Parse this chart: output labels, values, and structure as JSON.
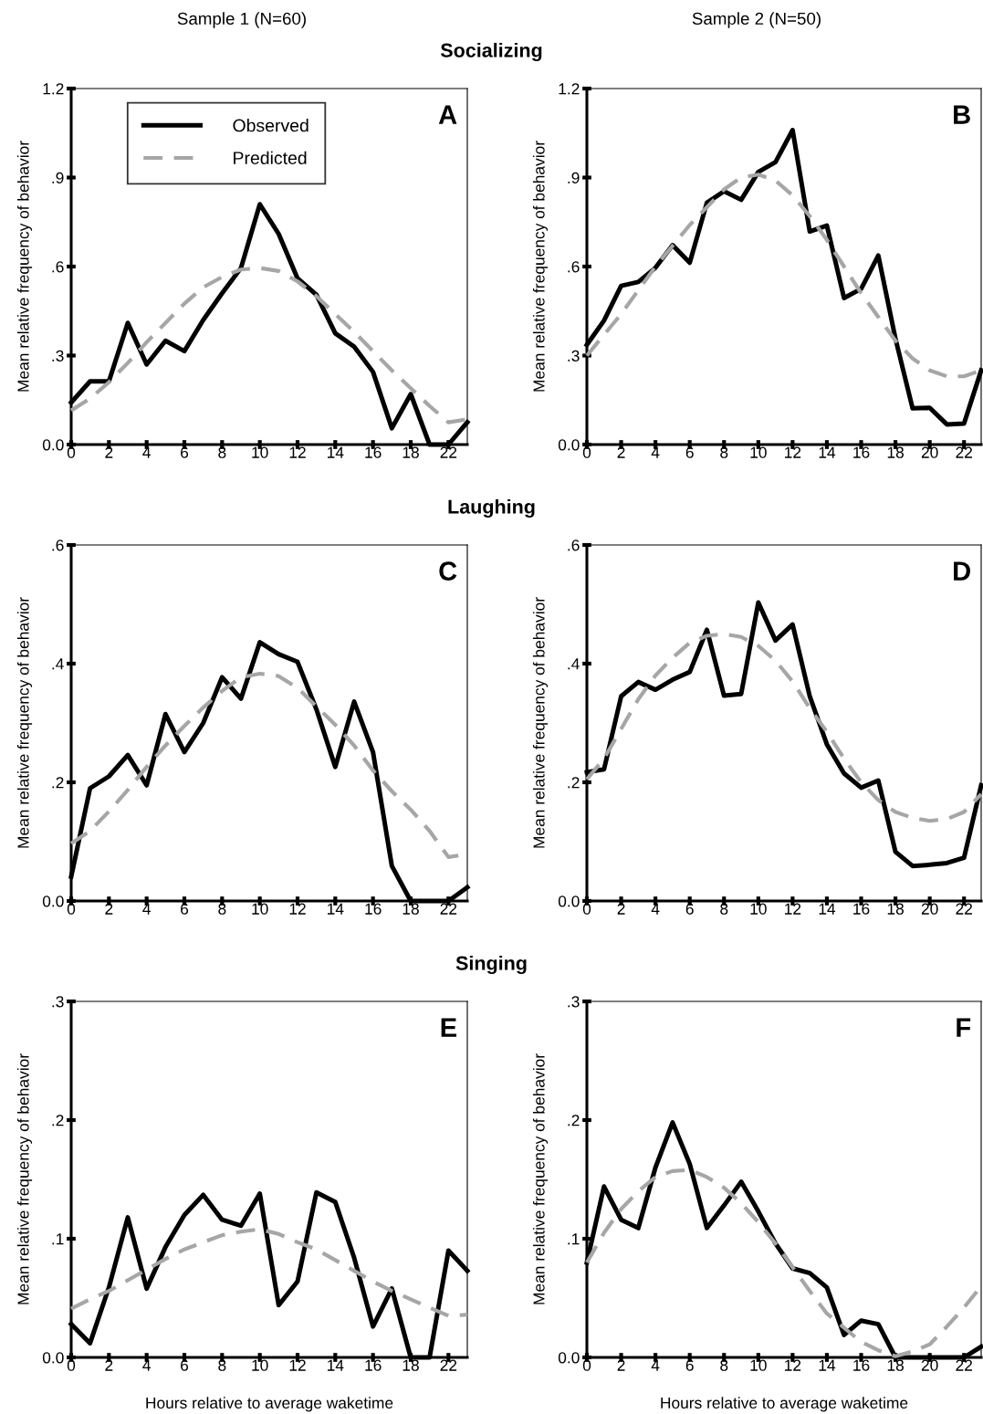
{
  "chart_data": [
    {
      "type": "line",
      "title": "Socializing",
      "subtitle": "Sample 1 (N=60)",
      "ylabel": "Mean relative frequency of behavior",
      "annotations": [
        "A"
      ],
      "categories": [
        "0",
        null,
        "2",
        null,
        "4",
        null,
        "6",
        null,
        "8",
        null,
        "10",
        null,
        "12",
        null,
        "14",
        null,
        "16",
        null,
        "18",
        null,
        "22",
        null
      ],
      "ylim": [
        0,
        1.2
      ],
      "yticks": [
        {
          "value": 0,
          "label": "0.0"
        },
        {
          "value": 0.3,
          "label": ".3"
        },
        {
          "value": 0.6,
          "label": ".6"
        },
        {
          "value": 0.9,
          "label": ".9"
        },
        1.2
      ],
      "grid": false,
      "legend": "top left",
      "series": [
        {
          "name": "Observed",
          "color": "#000000",
          "line_style": "solid",
          "values": [
            0.142,
            0.213,
            0.213,
            0.41,
            0.27,
            0.35,
            0.315,
            0.42,
            0.51,
            0.595,
            0.81,
            0.71,
            0.56,
            0.505,
            0.375,
            0.33,
            0.245,
            0.055,
            0.17,
            0,
            0,
            0.075
          ]
        },
        {
          "name": "Predicted",
          "color": "#a6a6a6",
          "line_style": "dashed",
          "values": [
            0.115,
            0.155,
            0.21,
            0.275,
            0.345,
            0.41,
            0.475,
            0.53,
            0.565,
            0.59,
            0.595,
            0.585,
            0.55,
            0.5,
            0.44,
            0.38,
            0.315,
            0.25,
            0.19,
            0.13,
            0.075,
            0.085
          ]
        }
      ]
    },
    {
      "type": "line",
      "subtitle": "Sample 2 (N=50)",
      "ylabel": "Mean relative frequency of behavior",
      "annotations": [
        "B"
      ],
      "x": [
        0,
        1,
        2,
        3,
        4,
        5,
        6,
        7,
        8,
        9,
        10,
        11,
        12,
        13,
        14,
        15,
        16,
        17,
        18,
        19,
        20,
        21,
        22,
        23
      ],
      "xlim": [
        0,
        23
      ],
      "xticks": [
        0,
        2,
        4,
        6,
        8,
        10,
        12,
        14,
        16,
        18,
        20,
        22
      ],
      "ylim": [
        0,
        1.2
      ],
      "yticks": [
        {
          "value": 0,
          "label": "0.0"
        },
        {
          "value": 0.3,
          "label": ".3"
        },
        {
          "value": 0.6,
          "label": ".6"
        },
        {
          "value": 0.9,
          "label": ".9"
        },
        1.2
      ],
      "grid": false,
      "series": [
        {
          "color": "#000000",
          "line_style": "solid",
          "values": [
            0.336,
            0.418,
            0.535,
            0.548,
            0.596,
            0.672,
            0.613,
            0.815,
            0.854,
            0.825,
            0.919,
            0.952,
            1.06,
            0.718,
            0.738,
            0.494,
            0.525,
            0.637,
            0.357,
            0.122,
            0.124,
            0.068,
            0.071,
            0.25
          ]
        },
        {
          "color": "#a6a6a6",
          "line_style": "dashed",
          "values": [
            0.3,
            0.37,
            0.44,
            0.52,
            0.6,
            0.67,
            0.74,
            0.8,
            0.86,
            0.9,
            0.91,
            0.89,
            0.84,
            0.77,
            0.69,
            0.6,
            0.51,
            0.43,
            0.35,
            0.29,
            0.25,
            0.23,
            0.23,
            0.25
          ]
        }
      ]
    },
    {
      "type": "line",
      "title": "Laughing",
      "ylabel": "Mean relative frequency of behavior",
      "annotations": [
        "C"
      ],
      "categories": [
        "0",
        null,
        "2",
        null,
        "4",
        null,
        "6",
        null,
        "8",
        null,
        "10",
        null,
        "12",
        null,
        "14",
        null,
        "16",
        null,
        "18",
        null,
        "22",
        null
      ],
      "ylim": [
        0,
        0.6
      ],
      "yticks": [
        {
          "value": 0,
          "label": "0.0"
        },
        {
          "value": 0.2,
          "label": ".2"
        },
        {
          "value": 0.4,
          "label": ".4"
        },
        {
          "value": 0.6,
          "label": ".6"
        }
      ],
      "grid": false,
      "series": [
        {
          "color": "#000000",
          "line_style": "solid",
          "values": [
            0.041,
            0.19,
            0.21,
            0.246,
            0.195,
            0.315,
            0.251,
            0.3,
            0.377,
            0.341,
            0.436,
            0.416,
            0.403,
            0.323,
            0.226,
            0.336,
            0.251,
            0.059,
            0,
            0,
            0,
            0.023
          ]
        },
        {
          "color": "#a6a6a6",
          "line_style": "dashed",
          "values": [
            0.097,
            0.118,
            0.151,
            0.187,
            0.226,
            0.262,
            0.295,
            0.326,
            0.354,
            0.377,
            0.383,
            0.379,
            0.359,
            0.328,
            0.297,
            0.262,
            0.22,
            0.185,
            0.154,
            0.118,
            0.074,
            0.079
          ]
        }
      ]
    },
    {
      "type": "line",
      "ylabel": "Mean relative frequency of behavior",
      "annotations": [
        "D"
      ],
      "x": [
        0,
        1,
        2,
        3,
        4,
        5,
        6,
        7,
        8,
        9,
        10,
        11,
        12,
        13,
        14,
        15,
        16,
        17,
        18,
        19,
        20,
        21,
        22,
        23
      ],
      "xlim": [
        0,
        23
      ],
      "xticks": [
        0,
        2,
        4,
        6,
        8,
        10,
        12,
        14,
        16,
        18,
        20,
        22
      ],
      "ylim": [
        0,
        0.6
      ],
      "yticks": [
        {
          "value": 0,
          "label": "0.0"
        },
        {
          "value": 0.2,
          "label": ".2"
        },
        {
          "value": 0.4,
          "label": ".4"
        },
        {
          "value": 0.6,
          "label": ".6"
        }
      ],
      "grid": false,
      "series": [
        {
          "color": "#000000",
          "line_style": "solid",
          "values": [
            0.217,
            0.222,
            0.345,
            0.369,
            0.356,
            0.373,
            0.386,
            0.457,
            0.346,
            0.349,
            0.503,
            0.439,
            0.466,
            0.345,
            0.264,
            0.215,
            0.191,
            0.203,
            0.083,
            0.059,
            0.061,
            0.064,
            0.073,
            0.195
          ]
        },
        {
          "color": "#a6a6a6",
          "line_style": "dashed",
          "values": [
            0.205,
            0.24,
            0.29,
            0.34,
            0.38,
            0.41,
            0.435,
            0.447,
            0.45,
            0.445,
            0.43,
            0.405,
            0.37,
            0.325,
            0.285,
            0.24,
            0.2,
            0.17,
            0.15,
            0.14,
            0.135,
            0.138,
            0.15,
            0.18
          ]
        }
      ]
    },
    {
      "type": "line",
      "title": "Singing",
      "xlabel": "Hours relative to average waketime",
      "ylabel": "Mean relative frequency of behavior",
      "annotations": [
        "E"
      ],
      "categories": [
        "0",
        null,
        "2",
        null,
        "4",
        null,
        "6",
        null,
        "8",
        null,
        "10",
        null,
        "12",
        null,
        "14",
        null,
        "16",
        null,
        "18",
        null,
        "22",
        null
      ],
      "ylim": [
        0,
        0.3
      ],
      "yticks": [
        {
          "value": 0,
          "label": "0.0"
        },
        {
          "value": 0.1,
          "label": ".1"
        },
        {
          "value": 0.2,
          "label": ".2"
        },
        {
          "value": 0.3,
          "label": ".3"
        }
      ],
      "grid": false,
      "series": [
        {
          "color": "#000000",
          "line_style": "solid",
          "values": [
            0.028,
            0.012,
            0.059,
            0.118,
            0.058,
            0.093,
            0.12,
            0.137,
            0.116,
            0.111,
            0.138,
            0.044,
            0.064,
            0.139,
            0.131,
            0.084,
            0.026,
            0.058,
            0,
            0,
            0.09,
            0.073
          ]
        },
        {
          "color": "#a6a6a6",
          "line_style": "dashed",
          "values": [
            0.041,
            0.049,
            0.056,
            0.065,
            0.074,
            0.083,
            0.091,
            0.097,
            0.103,
            0.106,
            0.108,
            0.104,
            0.097,
            0.091,
            0.082,
            0.073,
            0.064,
            0.056,
            0.049,
            0.042,
            0.035,
            0.036
          ]
        }
      ]
    },
    {
      "type": "line",
      "xlabel": "Hours relative to average waketime",
      "ylabel": "Mean relative frequency of behavior",
      "annotations": [
        "F"
      ],
      "x": [
        0,
        1,
        2,
        3,
        4,
        5,
        6,
        7,
        8,
        9,
        10,
        11,
        12,
        13,
        14,
        15,
        16,
        17,
        18,
        19,
        20,
        21,
        22,
        23
      ],
      "xlim": [
        0,
        23
      ],
      "xticks": [
        0,
        2,
        4,
        6,
        8,
        10,
        12,
        14,
        16,
        18,
        20,
        22
      ],
      "ylim": [
        0,
        0.3
      ],
      "yticks": [
        {
          "value": 0,
          "label": "0.0"
        },
        {
          "value": 0.1,
          "label": ".1"
        },
        {
          "value": 0.2,
          "label": ".2"
        },
        {
          "value": 0.3,
          "label": ".3"
        }
      ],
      "grid": false,
      "series": [
        {
          "color": "#000000",
          "line_style": "solid",
          "values": [
            0.08,
            0.144,
            0.116,
            0.109,
            0.16,
            0.198,
            0.163,
            0.109,
            0.128,
            0.148,
            0.123,
            0.096,
            0.075,
            0.071,
            0.059,
            0.019,
            0.031,
            0.028,
            0,
            0,
            0,
            0,
            0,
            0.009
          ]
        },
        {
          "color": "#a6a6a6",
          "line_style": "dashed",
          "values": [
            0.08,
            0.105,
            0.125,
            0.14,
            0.152,
            0.157,
            0.158,
            0.152,
            0.143,
            0.13,
            0.114,
            0.096,
            0.076,
            0.056,
            0.037,
            0.025,
            0.013,
            0.006,
            0.001,
            0.005,
            0.011,
            0.026,
            0.042,
            0.06
          ]
        }
      ]
    }
  ]
}
